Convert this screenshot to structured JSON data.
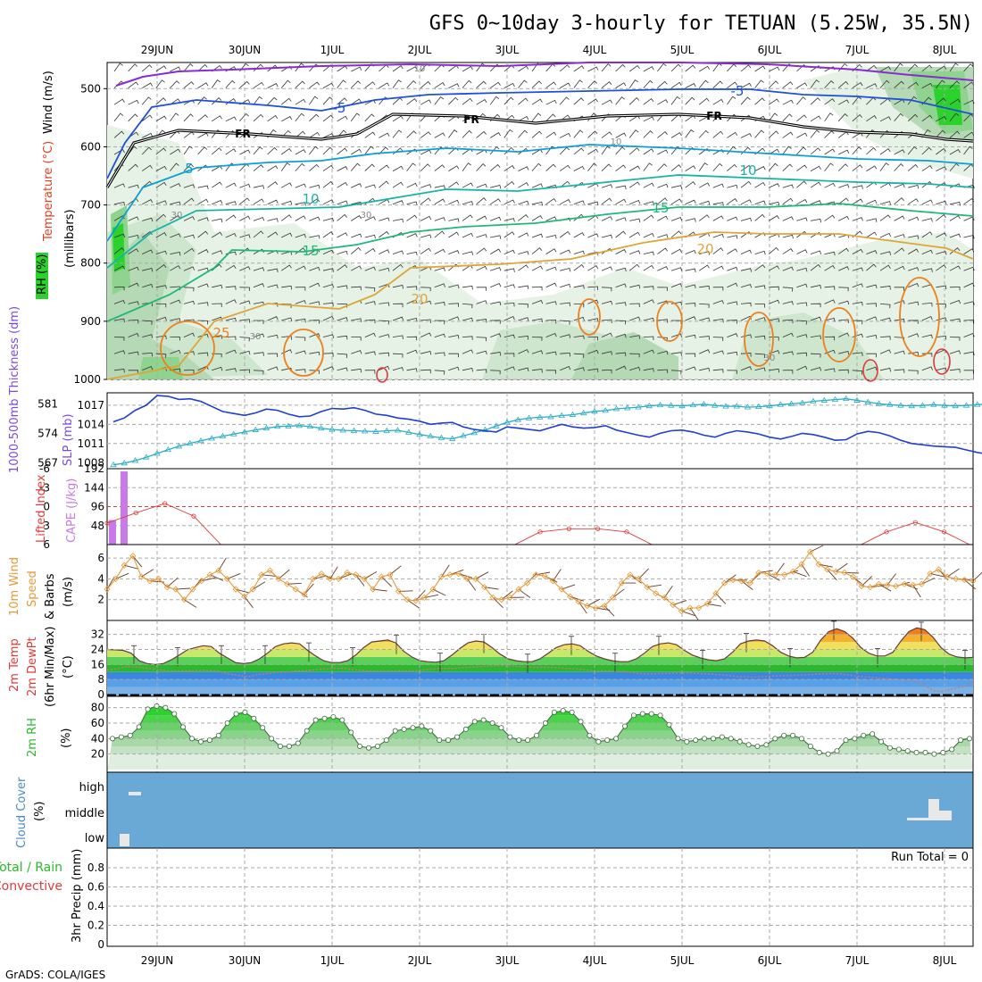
{
  "title": "GFS 0~10day 3-hourly for TETUAN (5.25W, 35.5N)",
  "footer": "GrADS: COLA/IGES",
  "dates": [
    "29JUN",
    "30JUN",
    "1JUL",
    "2JUL",
    "3JUL",
    "4JUL",
    "5JUL",
    "6JUL",
    "7JUL",
    "8JUL"
  ],
  "colors": {
    "t_neg5": "#1f4fd8",
    "t_5": "#0c9ed6",
    "t_10": "#18b3a8",
    "t_15": "#1eb87a",
    "t_20": "#e0a437",
    "t_25": "#f07f1a",
    "t_30": "#e03a3a",
    "freezing": "#000000",
    "top": "#8a2bd2",
    "slp": "#1f3fd0",
    "thick": "#2aaec5",
    "cape": "#c87ae8",
    "li": "#e03a3a",
    "wind": "#e69a38",
    "barb": "#6a3a22",
    "rh": "#2bd22b",
    "cloud": "#6aa9d6",
    "cloud_mark": "#e8e8e8"
  },
  "panels": {
    "upper": {
      "ylabel": "(millibars)",
      "side_labels": {
        "wind": "Wind (m/s)",
        "temp": "Temperature (°C)",
        "rh": "RH (%)"
      },
      "ticks": [
        "500",
        "600",
        "700",
        "800",
        "900",
        "1000"
      ],
      "contour_labels": {
        "fr": "FR",
        "m5": "-5",
        "p5": "5",
        "p10": "10",
        "p15": "15",
        "p20": "20",
        "p25": "25",
        "rh30": "30",
        "rh10": "10"
      }
    },
    "slp": {
      "label_thick": "1000-500mb Thickness (dm)",
      "label_slp": "SLP (mb)",
      "left_ticks": [
        "581",
        "574",
        "567"
      ],
      "right_ticks": [
        "1017",
        "1014",
        "1011",
        "1008"
      ]
    },
    "cape": {
      "label_li": "Lifted Index",
      "label_cape": "CAPE (J/kg)",
      "li_ticks": [
        "-6",
        "-3",
        "0",
        "3",
        "6"
      ],
      "cape_ticks": [
        "192",
        "144",
        "96",
        "48"
      ]
    },
    "wind": {
      "label_a": "10m Wind",
      "label_b": "Speed",
      "label_c": "& Barbs",
      "label_unit": "(m/s)",
      "ticks": [
        "6",
        "4",
        "2"
      ]
    },
    "temp": {
      "label_a": "2m Temp",
      "label_b": "2m DewPt",
      "label_c": "(6hr Min/Max)",
      "label_unit": "(°C)",
      "ticks": [
        "32",
        "24",
        "16",
        "8",
        "0"
      ]
    },
    "rh": {
      "label": "2m RH",
      "label_unit": "(%)",
      "ticks": [
        "80",
        "60",
        "40",
        "20"
      ]
    },
    "cloud": {
      "label": "Cloud Cover",
      "label_unit": "(%)",
      "levels": [
        "high",
        "middle",
        "low"
      ]
    },
    "precip": {
      "label_a": "Total / Rain",
      "label_b": "Convective",
      "label_c": "3hr Precip (mm)",
      "run_total": "Run Total = 0",
      "ticks": [
        "0.8",
        "0.6",
        "0.4",
        "0.2",
        "0"
      ]
    }
  },
  "chart_data": {
    "type": "meteogram",
    "time_start": "28JUN 12Z",
    "step_hours": 3,
    "slp_mb": [
      1014.4,
      1015.0,
      1016.2,
      1017.0,
      1018.5,
      1018.4,
      1017.9,
      1018.0,
      1017.6,
      1016.8,
      1016.0,
      1015.7,
      1015.4,
      1015.8,
      1016.4,
      1016.2,
      1015.6,
      1015.2,
      1015.3,
      1016.0,
      1016.5,
      1016.4,
      1016.6,
      1016.2,
      1015.6,
      1015.4,
      1015.0,
      1014.8,
      1014.5,
      1014.0,
      1014.2,
      1014.3,
      1013.6,
      1013.2,
      1013.0,
      1012.8,
      1013.6,
      1013.4,
      1013.2,
      1013.0,
      1013.5,
      1014.0,
      1013.6,
      1013.4,
      1013.5,
      1013.8,
      1013.1,
      1012.7,
      1012.3,
      1012.0,
      1012.6,
      1013.0,
      1013.1,
      1012.8,
      1012.3,
      1012.0,
      1012.6,
      1013.0,
      1012.8,
      1012.5,
      1012.0,
      1011.7,
      1012.1,
      1012.6,
      1012.4,
      1012.0,
      1011.5,
      1011.6,
      1012.5,
      1012.9,
      1012.7,
      1012.2,
      1011.5,
      1011.0,
      1010.8,
      1010.6,
      1010.5,
      1010.4,
      1010.0,
      1009.6,
      1009.3,
      1009.2,
      1009.6,
      1010.0,
      1009.4,
      1009.2,
      1009.1,
      1008.8,
      1008.0,
      1007.6,
      1008.4,
      1009.8,
      1009.5,
      1009.2,
      1009.8,
      1010.5
    ],
    "thickness_dm": [
      566.5,
      566.9,
      567.5,
      568.3,
      569.2,
      570.1,
      570.9,
      571.6,
      572.2,
      572.8,
      573.3,
      573.8,
      574.3,
      574.8,
      575.2,
      575.6,
      575.7,
      575.8,
      575.6,
      575.2,
      574.9,
      574.7,
      574.6,
      574.5,
      574.4,
      574.6,
      574.7,
      574.2,
      573.7,
      573.3,
      572.9,
      572.7,
      573.4,
      574.1,
      574.8,
      575.7,
      576.6,
      577.2,
      577.6,
      577.8,
      577.9,
      578.2,
      578.4,
      578.8,
      579.2,
      579.4,
      579.8,
      580.0,
      580.2,
      580.5,
      580.7,
      580.6,
      580.5,
      580.7,
      580.9,
      580.6,
      580.4,
      580.4,
      580.2,
      580.3,
      580.5,
      580.8,
      581.0,
      581.2,
      581.6,
      581.8,
      582.0,
      582.2,
      581.8,
      581.4,
      581.0,
      580.8,
      580.6,
      580.5,
      580.6,
      580.8,
      580.6,
      580.5,
      580.6,
      580.8,
      580.9,
      581.1,
      581.3,
      581.0,
      580.7,
      580.4,
      580.1,
      580.2,
      580.6,
      581.0,
      580.6,
      580.2,
      579.8,
      579.4,
      579.1,
      578.8
    ],
    "cape_bars_jkg": [
      {
        "t": 0,
        "v": 62
      },
      {
        "t": 1,
        "v": 185
      }
    ],
    "lifted_index": [
      2.6,
      1.0,
      -0.5,
      1.5,
      6.5,
      6.5,
      6.5,
      6.5,
      6.5,
      6.5,
      6.5,
      6.5,
      6.5,
      6.5,
      6.5,
      4.0,
      3.5,
      3.5,
      4.0,
      6.5,
      6.5,
      6.5,
      6.5,
      6.5,
      6.5,
      6.5,
      6.5,
      4.0,
      2.5,
      4.0,
      6.5
    ],
    "wind_speed_ms": [
      3.0,
      4.0,
      5.3,
      6.2,
      4.2,
      3.8,
      4.0,
      3.2,
      3.0,
      2.0,
      3.0,
      3.8,
      4.4,
      4.8,
      4.0,
      3.0,
      2.3,
      3.0,
      4.4,
      4.8,
      4.0,
      3.5,
      3.0,
      2.5,
      4.0,
      4.5,
      4.0,
      4.0,
      4.6,
      4.4,
      4.0,
      3.0,
      4.2,
      4.4,
      2.8,
      2.0,
      1.9,
      2.2,
      3.0,
      4.2,
      4.4,
      4.5,
      4.0,
      4.0,
      3.2,
      2.2,
      2.0,
      2.2,
      3.0,
      3.6,
      4.4,
      4.3,
      3.8,
      3.0,
      2.3,
      1.8,
      1.4,
      1.2,
      1.4,
      2.2,
      3.6,
      4.4,
      4.0,
      3.2,
      2.6,
      2.2,
      1.5,
      0.9,
      1.2,
      1.2,
      1.6,
      2.6,
      3.6,
      3.9,
      3.8,
      3.6,
      4.6,
      4.5,
      4.4,
      4.4,
      4.7,
      5.4,
      6.6,
      5.4,
      4.9,
      4.7,
      4.6,
      4.2,
      3.3,
      3.2,
      3.5,
      3.4,
      3.3,
      3.5,
      3.4,
      3.5,
      4.5,
      4.9,
      4.2,
      4.0,
      3.9,
      3.8
    ],
    "temp_c": [
      24,
      23.8,
      23.5,
      22,
      18,
      16.5,
      16,
      16.5,
      18.5,
      21,
      23.8,
      25,
      26,
      25.5,
      22,
      19.5,
      17,
      16.5,
      17,
      19,
      22,
      25.5,
      27,
      27.5,
      27,
      23.5,
      20.5,
      18,
      17,
      17,
      18,
      21,
      25,
      28,
      28.5,
      29,
      27.5,
      23,
      20,
      18,
      17.5,
      17.2,
      18,
      21,
      24.5,
      27.5,
      28.5,
      28,
      25,
      21.5,
      19,
      18,
      17.5,
      17.5,
      19,
      22,
      25,
      26.5,
      27,
      26,
      23,
      20.5,
      19,
      18,
      17.5,
      17.5,
      19,
      22,
      25.5,
      27,
      27.5,
      26.5,
      23.5,
      21,
      19.5,
      18.5,
      18,
      19,
      22.5,
      27,
      28.5,
      29,
      28.5,
      26,
      22.5,
      20.5,
      19.5,
      19.8,
      22.5,
      29,
      33.5,
      35,
      33.5,
      30,
      25,
      22,
      20.5,
      20.5,
      22.5,
      28.5,
      33.5,
      35.5,
      34.5,
      30.5,
      25,
      21.5,
      20,
      19.5,
      19.8
    ],
    "dewpoint_c": [
      13,
      13.5,
      14.5,
      15,
      14.5,
      14,
      13.5,
      13,
      12.5,
      12.5,
      12.5,
      12.5,
      13,
      12.8,
      12.5,
      11.5,
      10.5,
      10,
      9.5,
      10.5,
      11,
      11.5,
      12,
      12,
      12.5,
      12.5,
      13,
      13.5,
      13.5,
      14,
      14,
      13.5,
      13,
      12.5,
      12.5,
      12.5,
      12.5,
      12.5,
      12.5,
      12.5,
      13,
      13.5,
      13.8,
      14,
      14,
      14.2,
      14.5,
      14.8,
      15,
      15.2,
      15.3,
      15.2,
      15,
      14.8,
      14.5,
      14.5,
      14.5,
      14.3,
      14,
      13.8,
      13.5,
      13,
      12.5,
      12.5,
      12.5,
      12.3,
      12,
      11.5,
      11,
      11,
      11.2,
      11.3,
      11.4,
      11.5,
      11.5,
      11.3,
      11,
      10.8,
      10.5,
      10,
      9.5,
      9.5,
      9.3,
      9.5,
      9.8,
      10,
      10,
      10.2,
      10.3,
      10.5,
      10.8,
      11,
      11.2,
      11,
      10.5,
      10,
      9.5,
      9.2,
      8.8,
      8.5,
      8.2,
      8,
      7.5,
      6.5,
      4.5,
      2,
      1.5,
      2.5,
      3.5,
      4.5,
      5.5
    ],
    "rh_pct": [
      40,
      42,
      44,
      55,
      78,
      82,
      80,
      72,
      55,
      40,
      36,
      38,
      44,
      60,
      72,
      74,
      66,
      54,
      40,
      30,
      30,
      34,
      50,
      64,
      66,
      68,
      64,
      48,
      30,
      28,
      30,
      38,
      50,
      52,
      54,
      56,
      50,
      38,
      38,
      42,
      52,
      62,
      64,
      60,
      54,
      42,
      38,
      38,
      44,
      60,
      74,
      76,
      74,
      62,
      44,
      36,
      38,
      40,
      56,
      70,
      72,
      72,
      70,
      58,
      40,
      36,
      38,
      40,
      40,
      42,
      40,
      36,
      32,
      30,
      32,
      40,
      44,
      44,
      40,
      30,
      22,
      20,
      24,
      38,
      40,
      44,
      46,
      36,
      28,
      26,
      24,
      22,
      22,
      20,
      22,
      26,
      38,
      40
    ],
    "cloud": {
      "high": [
        {
          "t": 1,
          "v": 1
        }
      ],
      "middle": [
        {
          "t": 89,
          "v": 1
        }
      ],
      "low": [
        {
          "t": 0,
          "v": 1
        }
      ]
    },
    "precip_total_mm": 0
  }
}
